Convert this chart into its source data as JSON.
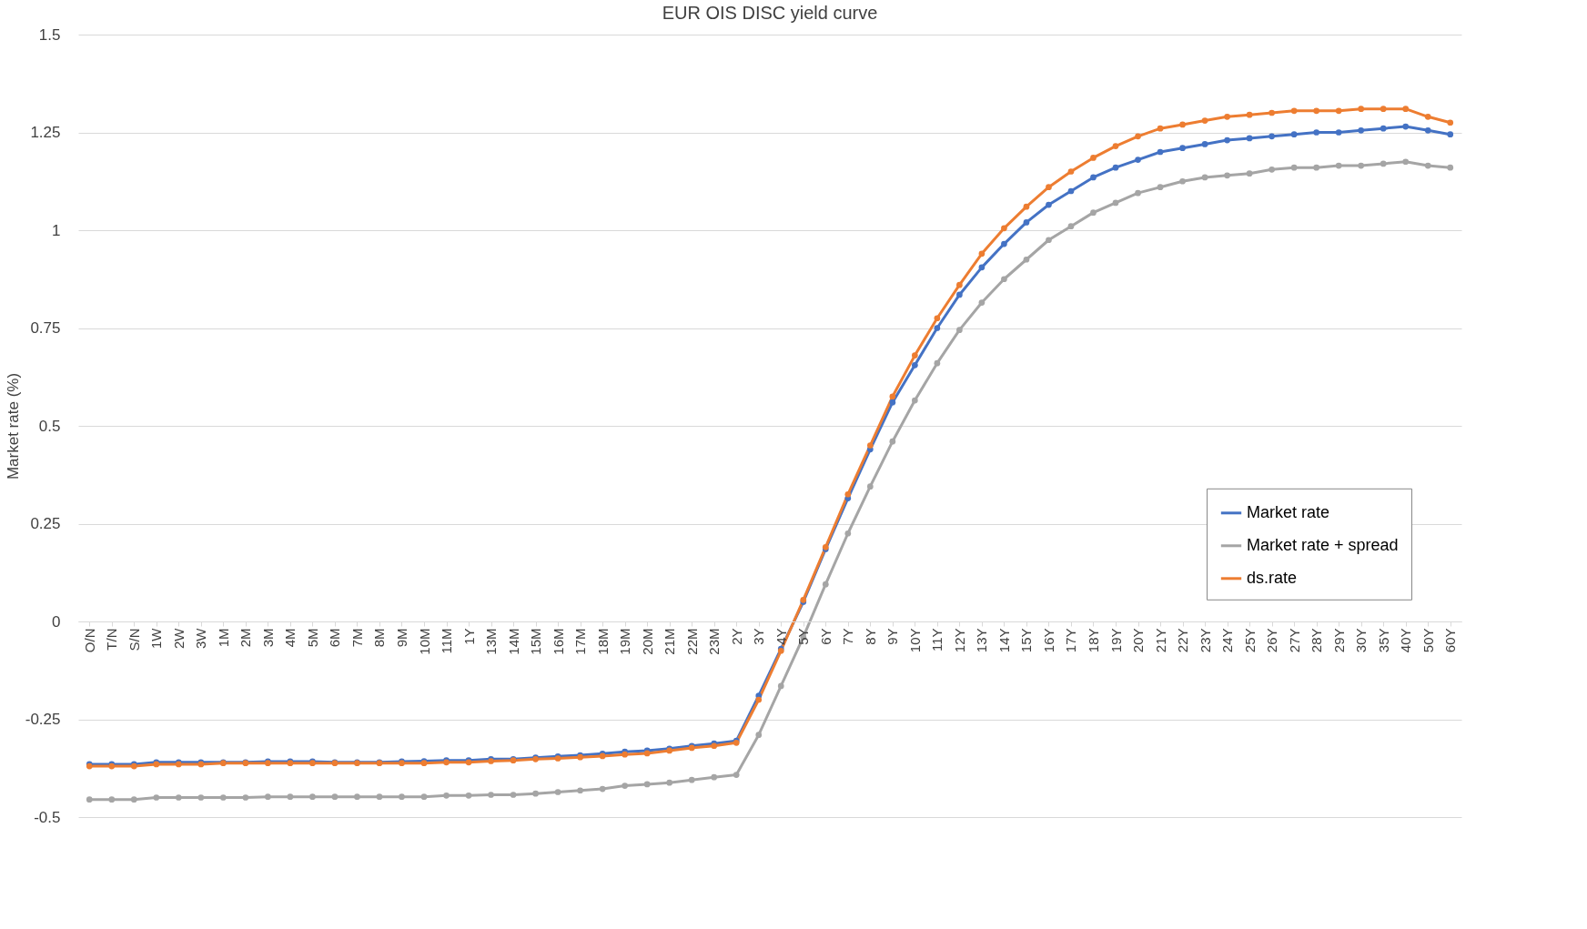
{
  "chart_data": {
    "type": "line",
    "title": "EUR OIS DISC yield curve",
    "ylabel": "Market rate (%)",
    "categories": [
      "O/N",
      "T/N",
      "S/N",
      "1W",
      "2W",
      "3W",
      "1M",
      "2M",
      "3M",
      "4M",
      "5M",
      "6M",
      "7M",
      "8M",
      "9M",
      "10M",
      "11M",
      "1Y",
      "13M",
      "14M",
      "15M",
      "16M",
      "17M",
      "18M",
      "19M",
      "20M",
      "21M",
      "22M",
      "23M",
      "2Y",
      "3Y",
      "4Y",
      "5Y",
      "6Y",
      "7Y",
      "8Y",
      "9Y",
      "10Y",
      "11Y",
      "12Y",
      "13Y",
      "14Y",
      "15Y",
      "16Y",
      "17Y",
      "18Y",
      "19Y",
      "20Y",
      "21Y",
      "22Y",
      "23Y",
      "24Y",
      "25Y",
      "26Y",
      "27Y",
      "28Y",
      "29Y",
      "30Y",
      "35Y",
      "40Y",
      "50Y",
      "60Y"
    ],
    "series": [
      {
        "name": "Market rate",
        "color": "#4472c4",
        "values": [
          -0.365,
          -0.365,
          -0.365,
          -0.36,
          -0.36,
          -0.36,
          -0.36,
          -0.36,
          -0.358,
          -0.358,
          -0.358,
          -0.36,
          -0.36,
          -0.36,
          -0.358,
          -0.357,
          -0.355,
          -0.355,
          -0.352,
          -0.352,
          -0.348,
          -0.345,
          -0.342,
          -0.338,
          -0.333,
          -0.33,
          -0.325,
          -0.318,
          -0.312,
          -0.305,
          -0.19,
          -0.07,
          0.05,
          0.185,
          0.315,
          0.44,
          0.56,
          0.655,
          0.75,
          0.835,
          0.905,
          0.965,
          1.02,
          1.065,
          1.1,
          1.135,
          1.16,
          1.18,
          1.2,
          1.21,
          1.22,
          1.23,
          1.235,
          1.24,
          1.245,
          1.25,
          1.25,
          1.255,
          1.26,
          1.265,
          1.255,
          1.245
        ]
      },
      {
        "name": "Market rate + spread",
        "color": "#a5a5a5",
        "values": [
          -0.455,
          -0.455,
          -0.455,
          -0.45,
          -0.45,
          -0.45,
          -0.45,
          -0.45,
          -0.448,
          -0.448,
          -0.448,
          -0.448,
          -0.448,
          -0.448,
          -0.448,
          -0.448,
          -0.445,
          -0.445,
          -0.443,
          -0.443,
          -0.44,
          -0.436,
          -0.432,
          -0.428,
          -0.42,
          -0.416,
          -0.412,
          -0.405,
          -0.398,
          -0.392,
          -0.29,
          -0.165,
          -0.04,
          0.095,
          0.225,
          0.345,
          0.46,
          0.565,
          0.66,
          0.745,
          0.815,
          0.875,
          0.925,
          0.975,
          1.01,
          1.045,
          1.07,
          1.095,
          1.11,
          1.125,
          1.135,
          1.14,
          1.145,
          1.155,
          1.16,
          1.16,
          1.165,
          1.165,
          1.17,
          1.175,
          1.165,
          1.16
        ]
      },
      {
        "name": "ds.rate",
        "color": "#ed7d31",
        "values": [
          -0.37,
          -0.37,
          -0.37,
          -0.365,
          -0.365,
          -0.365,
          -0.362,
          -0.362,
          -0.362,
          -0.362,
          -0.362,
          -0.362,
          -0.362,
          -0.362,
          -0.362,
          -0.362,
          -0.36,
          -0.36,
          -0.357,
          -0.355,
          -0.352,
          -0.35,
          -0.347,
          -0.344,
          -0.34,
          -0.337,
          -0.33,
          -0.323,
          -0.318,
          -0.31,
          -0.2,
          -0.075,
          0.055,
          0.19,
          0.325,
          0.45,
          0.575,
          0.68,
          0.775,
          0.86,
          0.94,
          1.005,
          1.06,
          1.11,
          1.15,
          1.185,
          1.215,
          1.24,
          1.26,
          1.27,
          1.28,
          1.29,
          1.295,
          1.3,
          1.305,
          1.305,
          1.305,
          1.31,
          1.31,
          1.31,
          1.29,
          1.275
        ]
      }
    ],
    "ylim": [
      -0.5,
      1.5
    ],
    "yticks": [
      -0.5,
      -0.25,
      0,
      0.25,
      0.5,
      0.75,
      1,
      1.25,
      1.5
    ],
    "grid": "y",
    "legend": "right",
    "marker": "circle",
    "line_style": "solid"
  }
}
